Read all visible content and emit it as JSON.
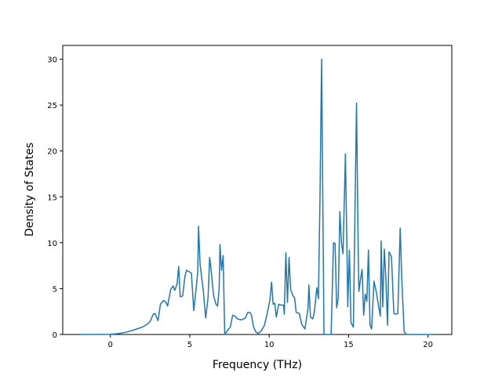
{
  "chart_data": {
    "type": "line",
    "x_label": "Frequency (THz)",
    "y_label": "Density of States",
    "x": [
      -1.9,
      0,
      0.5,
      1.0,
      1.5,
      2.0,
      2.3,
      2.5,
      2.7,
      2.8,
      3.0,
      3.15,
      3.35,
      3.5,
      3.6,
      3.8,
      3.95,
      4.05,
      4.2,
      4.3,
      4.4,
      4.55,
      4.7,
      4.8,
      5.0,
      5.1,
      5.2,
      5.25,
      5.4,
      5.5,
      5.55,
      5.65,
      5.85,
      6.0,
      6.15,
      6.25,
      6.35,
      6.5,
      6.65,
      6.75,
      6.85,
      6.9,
      7.0,
      7.1,
      7.2,
      7.4,
      7.55,
      7.7,
      7.85,
      8.0,
      8.25,
      8.5,
      8.65,
      8.8,
      8.9,
      9.0,
      9.15,
      9.3,
      9.5,
      9.7,
      9.9,
      10.05,
      10.15,
      10.25,
      10.35,
      10.45,
      10.6,
      10.75,
      10.9,
      10.95,
      11.05,
      11.15,
      11.25,
      11.35,
      11.5,
      11.6,
      11.7,
      11.9,
      12.05,
      12.25,
      12.45,
      12.5,
      12.6,
      12.75,
      12.85,
      13.0,
      13.1,
      13.2,
      13.3,
      13.45,
      13.9,
      14.05,
      14.15,
      14.25,
      14.35,
      14.45,
      14.55,
      14.65,
      14.8,
      14.9,
      14.95,
      15.05,
      15.15,
      15.3,
      15.5,
      15.6,
      15.65,
      15.75,
      15.85,
      15.95,
      16.05,
      16.15,
      16.25,
      16.35,
      16.45,
      16.6,
      16.75,
      16.85,
      17.0,
      17.05,
      17.15,
      17.25,
      17.35,
      17.45,
      17.55,
      17.7,
      17.85,
      17.95,
      18.1,
      18.25,
      18.35,
      18.5,
      18.65,
      20.25
    ],
    "series": [
      {
        "color": "#1f77b4",
        "values": [
          0,
          0.02,
          0.1,
          0.25,
          0.5,
          0.8,
          1.1,
          1.4,
          2.2,
          2.3,
          1.5,
          3.3,
          3.7,
          3.5,
          3.1,
          4.9,
          5.3,
          4.8,
          5.5,
          7.4,
          4.1,
          4.2,
          6.4,
          7.0,
          6.8,
          6.7,
          4.0,
          2.6,
          5.0,
          6.8,
          11.8,
          7.6,
          4.8,
          1.8,
          4.0,
          8.4,
          6.9,
          4.2,
          3.3,
          3.1,
          5.0,
          9.8,
          7.0,
          8.6,
          0,
          0.5,
          0.8,
          2.1,
          2.0,
          1.7,
          1.6,
          1.8,
          2.4,
          2.4,
          2.0,
          0.9,
          0.3,
          0.1,
          0.4,
          1.0,
          2.5,
          3.8,
          5.7,
          3.3,
          3.4,
          1.9,
          3.3,
          3.2,
          3.2,
          2.2,
          8.9,
          3.5,
          8.4,
          4.9,
          4.2,
          4.0,
          2.4,
          2.3,
          1.1,
          0.6,
          2.9,
          5.4,
          1.9,
          1.7,
          2.5,
          5.1,
          3.9,
          15,
          30,
          0,
          0,
          10.0,
          9.9,
          2.9,
          4.0,
          13.4,
          10.0,
          8.8,
          19.7,
          9.0,
          3.0,
          9.2,
          1.3,
          0.8,
          25.2,
          10,
          4.7,
          6.0,
          7.1,
          2.1,
          4.4,
          3.6,
          9.2,
          1.0,
          0.6,
          5.8,
          4.6,
          3.5,
          2.0,
          10.2,
          3.0,
          9.3,
          6.0,
          1.0,
          9.0,
          8.5,
          2.3,
          2.2,
          2.3,
          11.6,
          6.0,
          0.3,
          0,
          0
        ]
      }
    ],
    "xlim": [
      -3.0,
      21.5
    ],
    "ylim": [
      0,
      31.5
    ],
    "xticks": [
      0,
      5,
      10,
      15,
      20
    ],
    "yticks": [
      0,
      5,
      10,
      15,
      20,
      25,
      30
    ],
    "grid": false
  }
}
